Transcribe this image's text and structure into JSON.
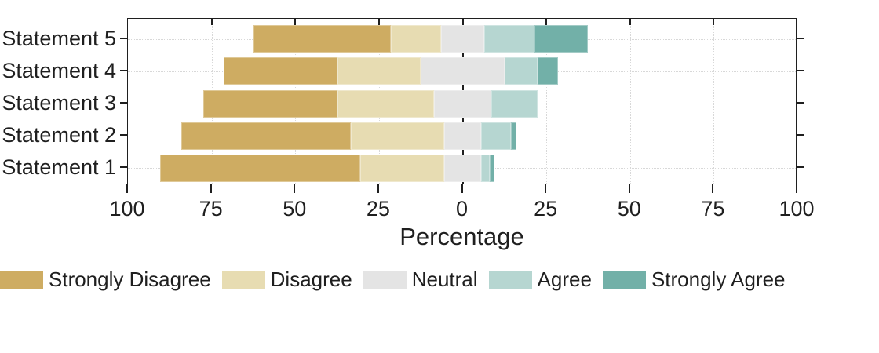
{
  "chart_data": {
    "type": "bar",
    "variant": "diverging_stacked_likert_horizontal",
    "title": "",
    "xlabel": "Percentage",
    "ylabel": "",
    "units": "percent",
    "xlim": [
      -100,
      100
    ],
    "grid": true,
    "grid_style": "dotted",
    "zero_line": true,
    "legend_position": "bottom",
    "neutral_split_across_zero": true,
    "categories_top_to_bottom": [
      "Statement 5",
      "Statement 4",
      "Statement 3",
      "Statement 2",
      "Statement 1"
    ],
    "x_ticks": [
      {
        "value": -100,
        "label": "100"
      },
      {
        "value": -75,
        "label": "75"
      },
      {
        "value": -50,
        "label": "50"
      },
      {
        "value": -25,
        "label": "25"
      },
      {
        "value": 0,
        "label": "0"
      },
      {
        "value": 25,
        "label": "25"
      },
      {
        "value": 50,
        "label": "50"
      },
      {
        "value": 75,
        "label": "75"
      },
      {
        "value": 100,
        "label": "100"
      }
    ],
    "series": [
      {
        "name": "Strongly Disagree",
        "color": "#CEAC62",
        "values": [
          41,
          34,
          40,
          50.5,
          60
        ]
      },
      {
        "name": "Disagree",
        "color": "#E7DCB2",
        "values": [
          15,
          25,
          29,
          28,
          25
        ]
      },
      {
        "name": "Neutral",
        "color": "#E4E4E4",
        "values": [
          13,
          25,
          17,
          11,
          11
        ]
      },
      {
        "name": "Agree",
        "color": "#B6D6D1",
        "values": [
          15,
          10,
          14,
          9,
          2.5
        ]
      },
      {
        "name": "Strongly Agree",
        "color": "#72B0A8",
        "values": [
          16,
          6,
          0,
          1.5,
          1.5
        ]
      }
    ],
    "colors": {
      "axis": "#1f1f1f",
      "grid": "#d8d8d8",
      "text": "#1f1f1f",
      "background": "#ffffff"
    }
  },
  "axis_titles": {
    "x": "Percentage"
  },
  "legend": {
    "items": [
      "Strongly Disagree",
      "Disagree",
      "Neutral",
      "Agree",
      "Strongly Agree"
    ]
  }
}
